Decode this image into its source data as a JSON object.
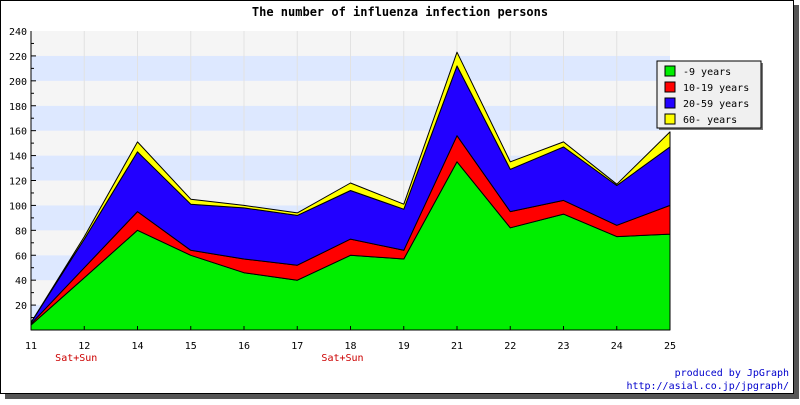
{
  "chart_data": {
    "type": "area",
    "stacked": true,
    "title": "The number of influenza infection persons",
    "categories": [
      "11",
      "12",
      "14",
      "15",
      "16",
      "17",
      "18",
      "19",
      "21",
      "22",
      "23",
      "24",
      "25"
    ],
    "category_notes": [
      "",
      "Sat+Sun",
      "",
      "",
      "",
      "",
      "Sat+Sun",
      "",
      "",
      "",
      "",
      "",
      ""
    ],
    "xlabel": "",
    "ylabel": "",
    "ylim": [
      0,
      240
    ],
    "yticks": [
      20,
      40,
      60,
      80,
      100,
      120,
      140,
      160,
      180,
      200,
      220,
      240
    ],
    "grid": "horizontal bands",
    "legend_position": "top-right",
    "series": [
      {
        "name": "-9 years",
        "color": "#00ee00",
        "values": [
          4,
          42,
          80,
          60,
          46,
          40,
          60,
          57,
          135,
          82,
          93,
          75,
          77
        ]
      },
      {
        "name": "10-19 years",
        "color": "#ff0000",
        "values": [
          1,
          8,
          15,
          4,
          11,
          12,
          13,
          7,
          21,
          13,
          11,
          9,
          23
        ]
      },
      {
        "name": "20-59 years",
        "color": "#2200ff",
        "values": [
          1,
          23,
          48,
          37,
          41,
          40,
          39,
          33,
          56,
          34,
          43,
          32,
          47
        ]
      },
      {
        "name": "60- years",
        "color": "#ffff00",
        "values": [
          0,
          2,
          8,
          4,
          2,
          2,
          6,
          4,
          11,
          6,
          4,
          1,
          12
        ]
      }
    ]
  },
  "credits": {
    "line1": "produced by JpGraph",
    "line2": "http://asial.co.jp/jpgraph/"
  }
}
